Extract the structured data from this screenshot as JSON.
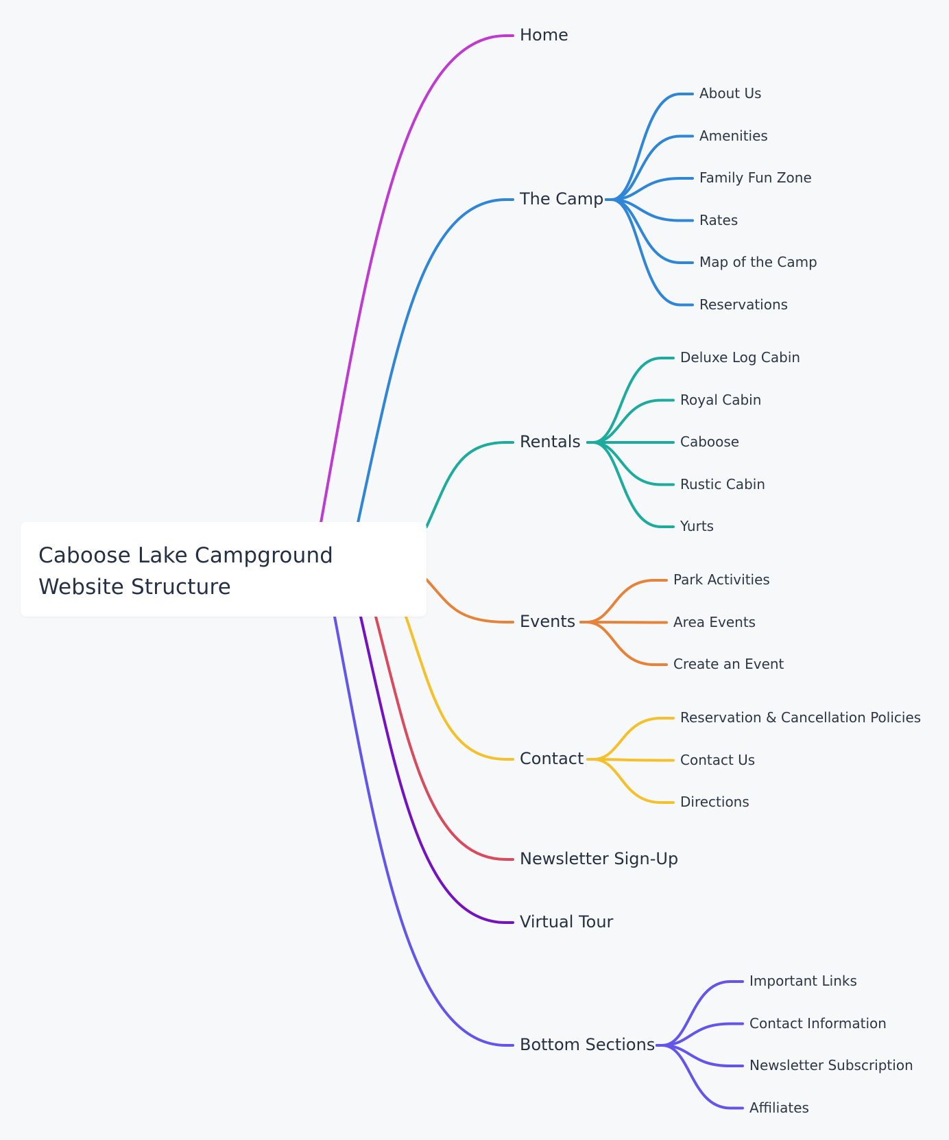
{
  "title": "Caboose Lake Campground Website Structure",
  "branches": [
    {
      "label": "Home",
      "color": "#bf3bd0",
      "children": []
    },
    {
      "label": "The Camp",
      "color": "#2f86d6",
      "children": [
        "About Us",
        "Amenities",
        "Family Fun Zone",
        "Rates",
        "Map of the Camp",
        "Reservations"
      ]
    },
    {
      "label": "Rentals",
      "color": "#1cab9c",
      "children": [
        "Deluxe Log Cabin",
        "Royal Cabin",
        "Caboose",
        "Rustic Cabin",
        "Yurts"
      ]
    },
    {
      "label": "Events",
      "color": "#e6833a",
      "children": [
        "Park Activities",
        "Area Events",
        "Create an Event"
      ]
    },
    {
      "label": "Contact",
      "color": "#f4c12c",
      "children": [
        "Reservation & Cancellation Policies",
        "Contact Us",
        "Directions"
      ]
    },
    {
      "label": "Newsletter Sign-Up",
      "color": "#d84a5e",
      "children": []
    },
    {
      "label": "Virtual Tour",
      "color": "#7412c2",
      "children": []
    },
    {
      "label": "Bottom Sections",
      "color": "#6455ea",
      "children": [
        "Important Links",
        "Contact Information",
        "Newsletter Subscription",
        "Affiliates"
      ]
    }
  ]
}
